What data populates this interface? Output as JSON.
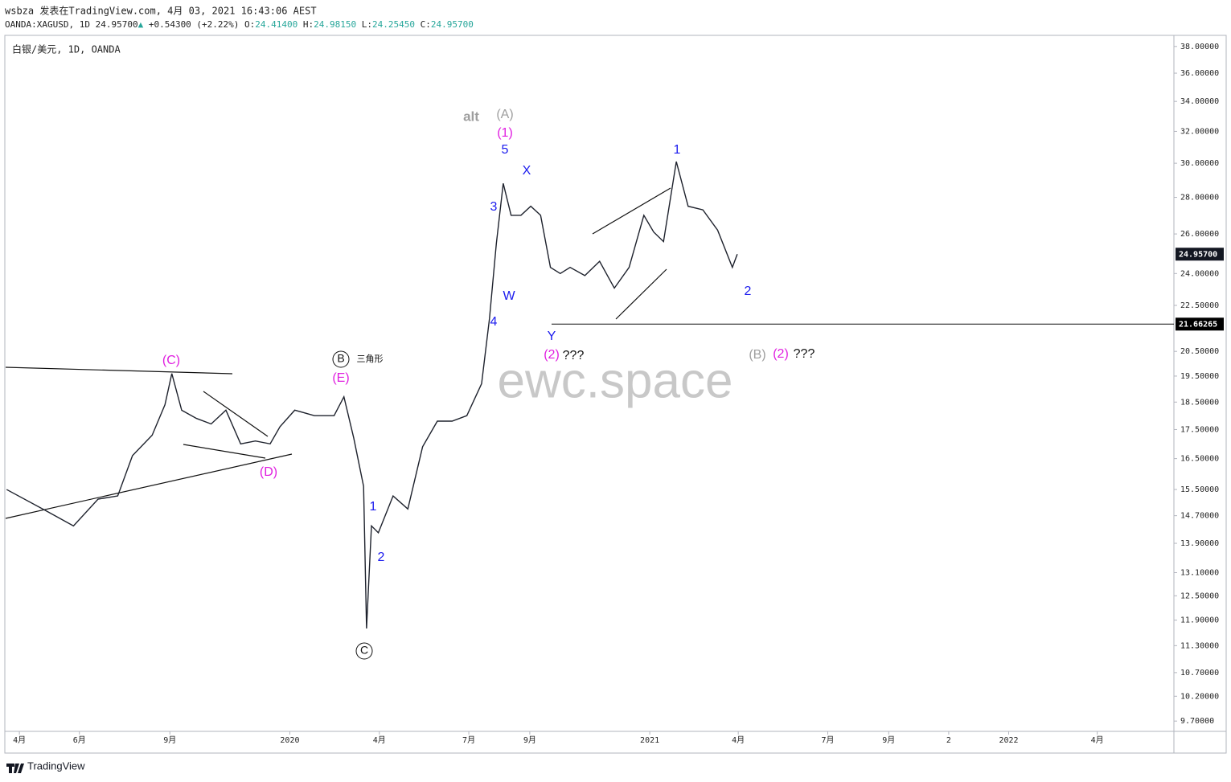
{
  "header": {
    "line1": "wsbza 发表在TradingView.com, 4月 03, 2021 16:43:06 AEST",
    "symbol": "OANDA:XAGUSD, 1D",
    "last": "24.95700",
    "arrow": "▲",
    "change": "+0.54300 (+2.22%)",
    "o_label": "O:",
    "o": "24.41400",
    "h_label": "H:",
    "h": "24.98150",
    "l_label": "L:",
    "l": "24.25450",
    "c_label": "C:",
    "c": "24.95700"
  },
  "chart_data": {
    "type": "line",
    "title": "白银/美元, 1D, OANDA",
    "watermark": "ewc.space",
    "log_scale": true,
    "x": [
      -13,
      30,
      55,
      80,
      100,
      115,
      135,
      148,
      155,
      165,
      180,
      195,
      210,
      225,
      240,
      255,
      265,
      280,
      300,
      320,
      330,
      340,
      350,
      353,
      358,
      365,
      380,
      395,
      410,
      425,
      440,
      455,
      470,
      478,
      485,
      492,
      500,
      510,
      520,
      530,
      540,
      550,
      560,
      575,
      590,
      605,
      620,
      635,
      645,
      655,
      668,
      680,
      695,
      710,
      725,
      730
    ],
    "series": [
      {
        "name": "XAGUSD",
        "color": "#1e222d",
        "values": [
          15.5,
          14.8,
          14.4,
          15.2,
          15.3,
          16.6,
          17.3,
          18.4,
          19.6,
          18.2,
          17.9,
          17.7,
          18.2,
          17.0,
          17.1,
          17.0,
          17.6,
          18.2,
          18.0,
          18.0,
          18.7,
          17.2,
          15.6,
          11.7,
          14.4,
          14.2,
          15.3,
          14.9,
          16.9,
          17.8,
          17.8,
          18.0,
          19.2,
          21.9,
          25.5,
          28.8,
          27.0,
          27.0,
          27.5,
          27.0,
          24.3,
          24.0,
          24.3,
          23.9,
          24.6,
          23.3,
          24.3,
          27.0,
          26.1,
          25.6,
          30.1,
          27.5,
          27.3,
          26.2,
          24.3,
          {
            "value": 24.957,
            "label": "24.95700"
          }
        ]
      }
    ],
    "last_price": {
      "value": 24.957,
      "label": "24.95700"
    },
    "hline": 21.66265,
    "xlim": [
      -14,
      1174
    ],
    "ylim": [
      9.5,
      38.8
    ],
    "xticks": [
      {
        "value": 0,
        "label": "4月"
      },
      {
        "value": 61,
        "label": "6月"
      },
      {
        "value": 153,
        "label": "9月"
      },
      {
        "value": 275,
        "label": "2020"
      },
      {
        "value": 366,
        "label": "4月"
      },
      {
        "value": 457,
        "label": "7月"
      },
      {
        "value": 519,
        "label": "9月"
      },
      {
        "value": 641,
        "label": "2021"
      },
      {
        "value": 731,
        "label": "4月"
      },
      {
        "value": 822,
        "label": "7月"
      },
      {
        "value": 884,
        "label": "9月"
      },
      {
        "value": 945,
        "label": "2"
      },
      {
        "value": 1006,
        "label": "2022"
      },
      {
        "value": 1096,
        "label": "4月"
      }
    ],
    "yticks": [
      {
        "value": 38,
        "label": "38.00000"
      },
      {
        "value": 36,
        "label": "36.00000"
      },
      {
        "value": 34,
        "label": "34.00000"
      },
      {
        "value": 32,
        "label": "32.00000"
      },
      {
        "value": 30,
        "label": "30.00000"
      },
      {
        "value": 28,
        "label": "28.00000"
      },
      {
        "value": 26,
        "label": "26.00000"
      },
      {
        "value": 24,
        "label": "24.00000"
      },
      {
        "value": 22.5,
        "label": "22.50000"
      },
      {
        "value": 20.5,
        "label": "20.50000"
      },
      {
        "value": 19.5,
        "label": "19.50000"
      },
      {
        "value": 18.5,
        "label": "18.50000"
      },
      {
        "value": 17.5,
        "label": "17.50000"
      },
      {
        "value": 16.5,
        "label": "16.50000"
      },
      {
        "value": 15.5,
        "label": "15.50000"
      },
      {
        "value": 14.7,
        "label": "14.70000"
      },
      {
        "value": 13.9,
        "label": "13.90000"
      },
      {
        "value": 13.1,
        "label": "13.10000"
      },
      {
        "value": 12.5,
        "label": "12.50000"
      },
      {
        "value": 11.9,
        "label": "11.90000"
      },
      {
        "value": 11.3,
        "label": "11.30000"
      },
      {
        "value": 10.7,
        "label": "10.70000"
      },
      {
        "value": 10.2,
        "label": "10.20000"
      },
      {
        "value": 9.7,
        "label": "9.70000"
      }
    ],
    "annotations": [
      {
        "text": "alt",
        "color": "#9e9e9e"
      },
      {
        "text": "(A)",
        "color": "#9e9e9e"
      },
      {
        "text": "(1)",
        "color": "#e01ee0"
      },
      {
        "text": "5",
        "color": "#1a1aee"
      },
      {
        "text": "X",
        "color": "#1a1aee"
      },
      {
        "text": "3",
        "color": "#1a1aee"
      },
      {
        "text": "W",
        "color": "#1a1aee"
      },
      {
        "text": "4",
        "color": "#1a1aee"
      },
      {
        "text": "Y",
        "color": "#1a1aee"
      },
      {
        "text": "(2)",
        "color": "#e01ee0"
      },
      {
        "text": "???",
        "color": "#111111"
      },
      {
        "text": "1",
        "color": "#1a1aee"
      },
      {
        "text": "2",
        "color": "#1a1aee"
      },
      {
        "text": "(B)",
        "color": "#9e9e9e"
      },
      {
        "text": "(2)",
        "color": "#e01ee0"
      },
      {
        "text": "???",
        "color": "#111111"
      },
      {
        "text": "(C)",
        "color": "#e01ee0"
      },
      {
        "text": "(E)",
        "color": "#e01ee0"
      },
      {
        "text": "B",
        "color": "#111111"
      },
      {
        "text": "三角形",
        "color": "#111111"
      },
      {
        "text": "(D)",
        "color": "#e01ee0"
      },
      {
        "text": "1",
        "color": "#1a1aee"
      },
      {
        "text": "2",
        "color": "#1a1aee"
      },
      {
        "text": "C",
        "color": "#111111"
      }
    ]
  },
  "footer": {
    "logo": "TradingView"
  }
}
